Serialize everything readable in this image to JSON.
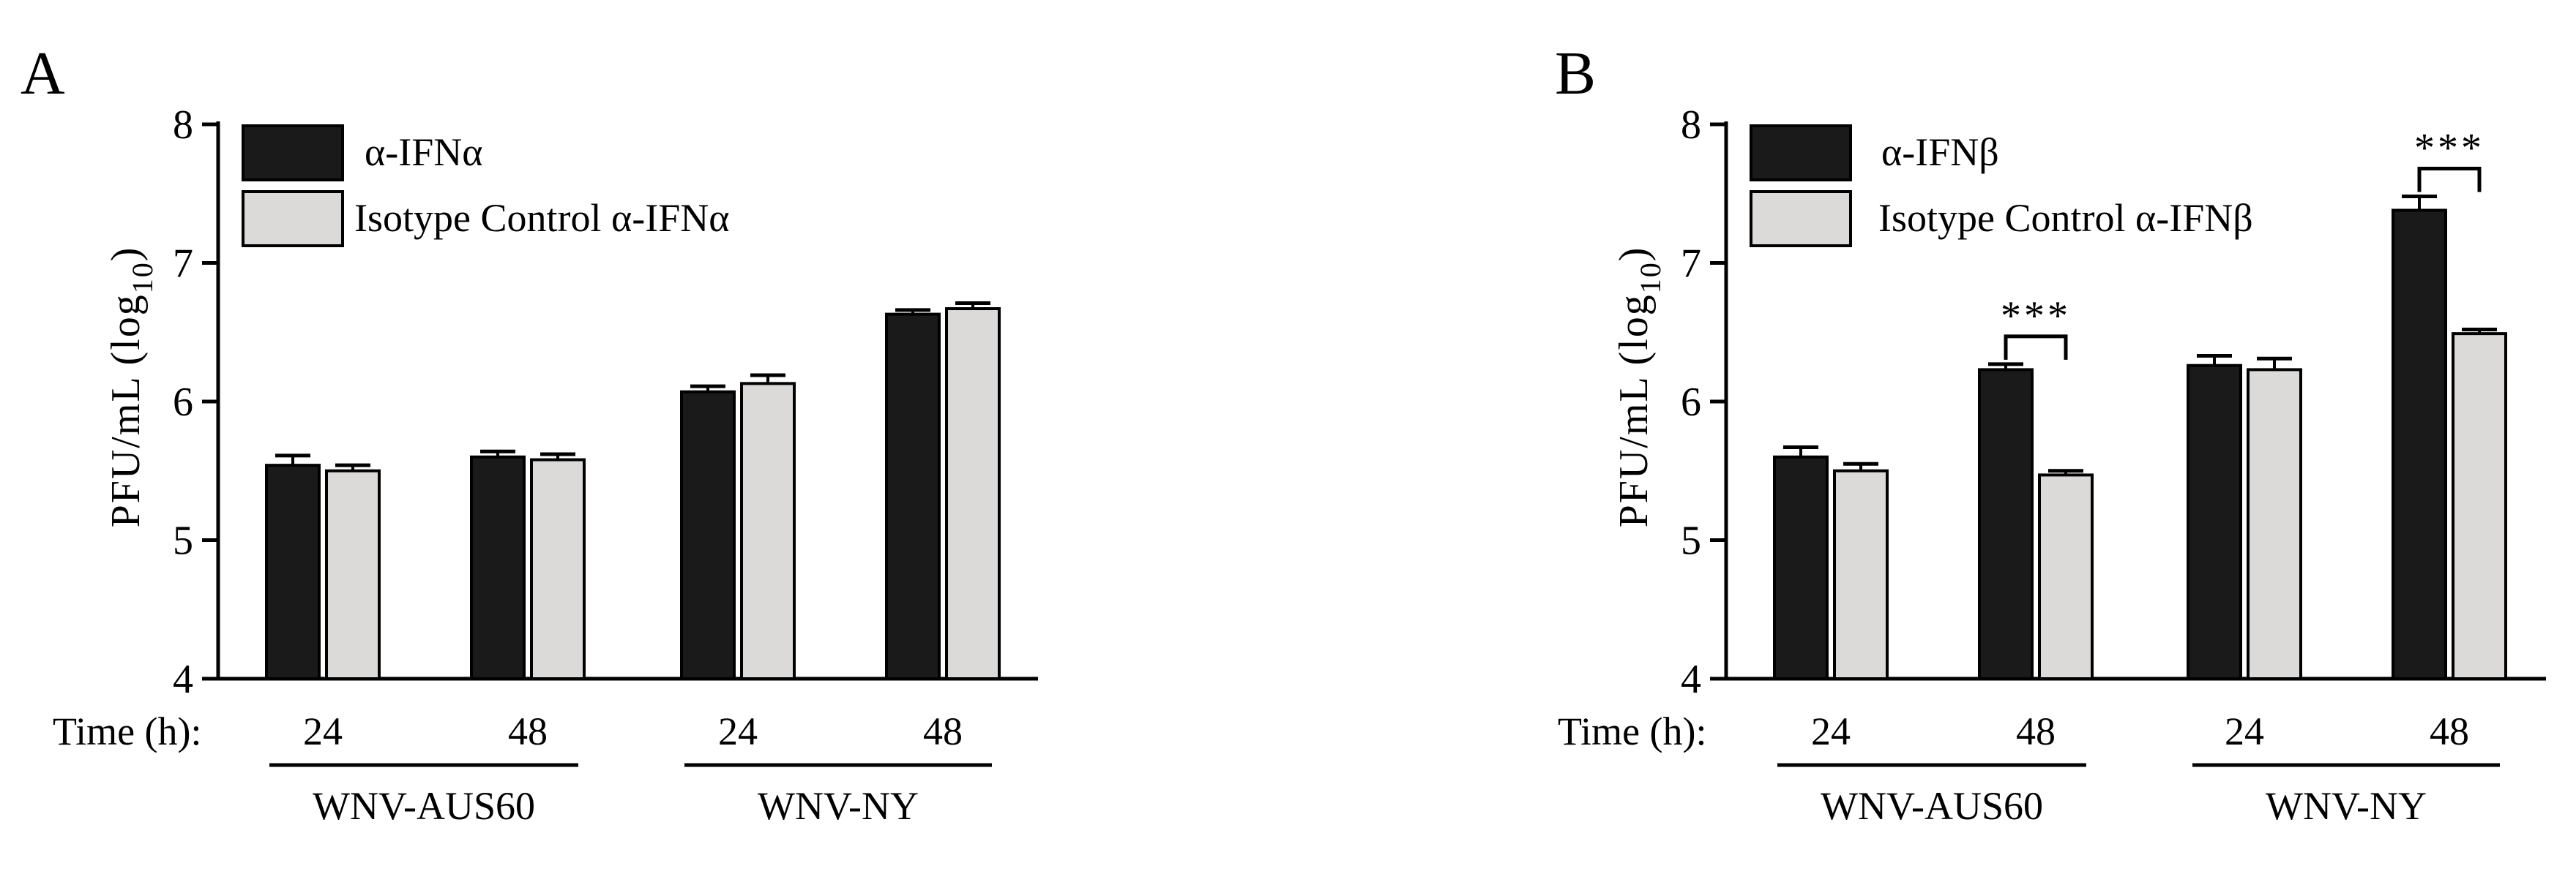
{
  "colors": {
    "dark": "#1a1a1a",
    "light": "#dcd9d9",
    "outline": "#000000"
  },
  "chart_data": [
    {
      "type": "bar",
      "panel_label": "A",
      "ylabel_main": "PFU/mL (log",
      "ylabel_sub": "10",
      "ylabel_end": ")",
      "ylim": [
        4,
        8
      ],
      "yticks": [
        "4",
        "5",
        "6",
        "7",
        "8"
      ],
      "time_label": "Time (h):",
      "categories": [
        "24",
        "48",
        "24",
        "48"
      ],
      "groups": [
        {
          "label": "WNV-AUS60",
          "categories": [
            0,
            1
          ]
        },
        {
          "label": "WNV-NY",
          "categories": [
            2,
            3
          ]
        }
      ],
      "series": [
        {
          "name": "α-IFNα",
          "color": "#1a1a1a",
          "values": [
            5.54,
            5.6,
            6.07,
            6.63
          ],
          "errors": [
            0.07,
            0.04,
            0.04,
            0.03
          ]
        },
        {
          "name": "Isotype Control α-IFNα",
          "color": "#dcd9d9",
          "values": [
            5.5,
            5.58,
            6.13,
            6.67
          ],
          "errors": [
            0.04,
            0.04,
            0.06,
            0.04
          ]
        }
      ],
      "significance": []
    },
    {
      "type": "bar",
      "panel_label": "B",
      "ylabel_main": "PFU/mL (log",
      "ylabel_sub": "10",
      "ylabel_end": ")",
      "ylim": [
        4,
        8
      ],
      "yticks": [
        "4",
        "5",
        "6",
        "7",
        "8"
      ],
      "time_label": "Time (h):",
      "categories": [
        "24",
        "48",
        "24",
        "48"
      ],
      "groups": [
        {
          "label": "WNV-AUS60",
          "categories": [
            0,
            1
          ]
        },
        {
          "label": "WNV-NY",
          "categories": [
            2,
            3
          ]
        }
      ],
      "series": [
        {
          "name": "α-IFNβ",
          "color": "#1a1a1a",
          "values": [
            5.6,
            6.23,
            6.26,
            7.38
          ],
          "errors": [
            0.07,
            0.04,
            0.07,
            0.1
          ]
        },
        {
          "name": "Isotype Control α-IFNβ",
          "color": "#dcd9d9",
          "values": [
            5.5,
            5.47,
            6.23,
            6.49
          ],
          "errors": [
            0.05,
            0.03,
            0.08,
            0.03
          ]
        }
      ],
      "significance": [
        {
          "category": 1,
          "label": "***"
        },
        {
          "category": 3,
          "label": "***"
        }
      ]
    }
  ]
}
